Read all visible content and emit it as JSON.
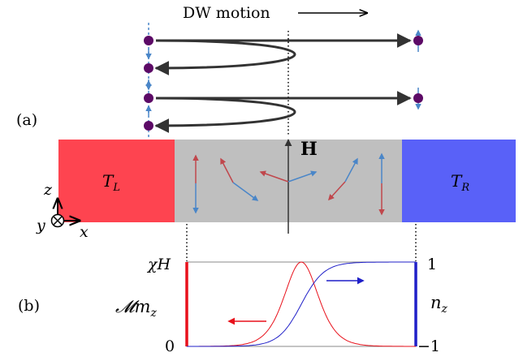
{
  "panel_a": {
    "panel_label": "(a)",
    "motion_label": "DW motion",
    "field_label": "H",
    "left_region": {
      "label_main": "T",
      "label_sub": "L",
      "color": "#fe4450"
    },
    "middle_region": {
      "color": "#bfbfbf"
    },
    "right_region": {
      "label_main": "T",
      "label_sub": "R",
      "color": "#5961f8"
    },
    "axes": {
      "z": "z",
      "y": "y",
      "x": "x"
    },
    "particle_color": "#5c0a66",
    "arrow_colors": {
      "blue": "#4a86c8",
      "red": "#c0474c"
    }
  },
  "panel_b": {
    "panel_label": "(b)",
    "left_axis_label": "𝓜m",
    "left_axis_sub": "z",
    "right_axis_label": "n",
    "right_axis_sub": "z",
    "left_top_tick": "χH",
    "left_bottom_tick": "0",
    "right_top_tick": "1",
    "right_bottom_tick": "−1",
    "red_curve_color": "#e8111b",
    "blue_curve_color": "#1f1fc8"
  }
}
